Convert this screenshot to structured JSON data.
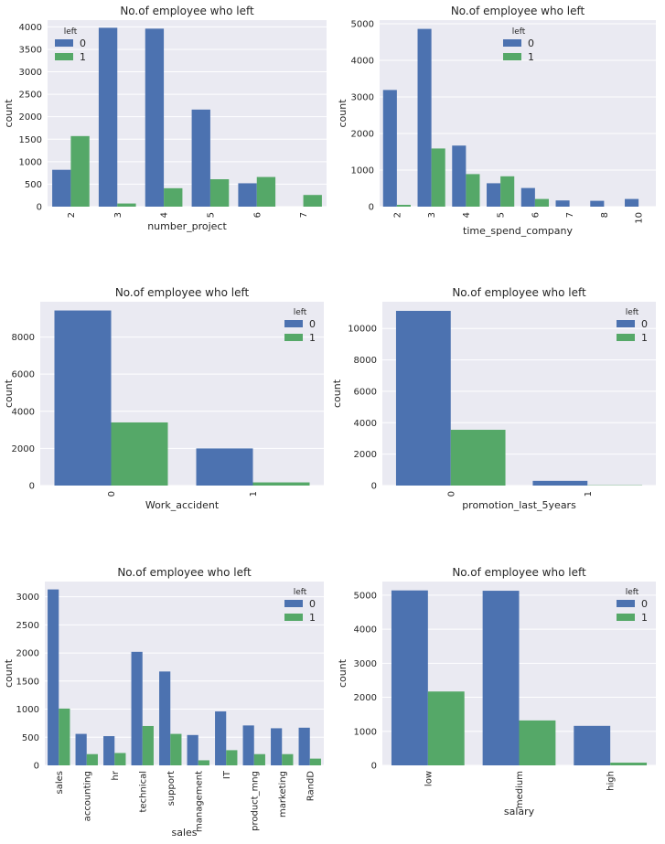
{
  "colors": {
    "left_0": "#4c72b0",
    "left_1": "#55a868",
    "plot_bg": "#eaeaf2",
    "grid": "#ffffff"
  },
  "chart_data": [
    {
      "type": "bar",
      "title": "No.of employee who left",
      "xlabel": "number_project",
      "ylabel": "count",
      "categories": [
        "2",
        "3",
        "4",
        "5",
        "6",
        "7"
      ],
      "series": [
        {
          "name": "0",
          "values": [
            820,
            3980,
            3960,
            2160,
            520,
            0
          ]
        },
        {
          "name": "1",
          "values": [
            1570,
            70,
            410,
            610,
            660,
            260
          ]
        }
      ],
      "ylim": [
        0,
        4150
      ],
      "yticks": [
        0,
        500,
        1000,
        1500,
        2000,
        2500,
        3000,
        3500,
        4000
      ],
      "legend_title": "left",
      "legend_position": "upper-left",
      "grid": true
    },
    {
      "type": "bar",
      "title": "No.of employee who left",
      "xlabel": "time_spend_company",
      "ylabel": "count",
      "categories": [
        "2",
        "3",
        "4",
        "5",
        "6",
        "7",
        "8",
        "10"
      ],
      "series": [
        {
          "name": "0",
          "values": [
            3190,
            4860,
            1670,
            640,
            510,
            170,
            160,
            210
          ]
        },
        {
          "name": "1",
          "values": [
            50,
            1590,
            890,
            830,
            210,
            0,
            0,
            0
          ]
        }
      ],
      "ylim": [
        0,
        5100
      ],
      "yticks": [
        0,
        1000,
        2000,
        3000,
        4000,
        5000
      ],
      "legend_title": "left",
      "legend_position": "upper-center",
      "grid": true
    },
    {
      "type": "bar",
      "title": "No.of employee who left",
      "xlabel": "Work_accident",
      "ylabel": "count",
      "categories": [
        "0",
        "1"
      ],
      "series": [
        {
          "name": "0",
          "values": [
            9430,
            2000
          ]
        },
        {
          "name": "1",
          "values": [
            3400,
            170
          ]
        }
      ],
      "ylim": [
        0,
        9900
      ],
      "yticks": [
        0,
        2000,
        4000,
        6000,
        8000
      ],
      "legend_title": "left",
      "legend_position": "upper-right",
      "grid": true
    },
    {
      "type": "bar",
      "title": "No.of employee who left",
      "xlabel": "promotion_last_5years",
      "ylabel": "count",
      "categories": [
        "0",
        "1"
      ],
      "series": [
        {
          "name": "0",
          "values": [
            11120,
            300
          ]
        },
        {
          "name": "1",
          "values": [
            3550,
            20
          ]
        }
      ],
      "ylim": [
        0,
        11700
      ],
      "yticks": [
        0,
        2000,
        4000,
        6000,
        8000,
        10000
      ],
      "legend_title": "left",
      "legend_position": "upper-right",
      "grid": true
    },
    {
      "type": "bar",
      "title": "No.of employee who left",
      "xlabel": "sales",
      "ylabel": "count",
      "categories": [
        "sales",
        "accounting",
        "hr",
        "technical",
        "support",
        "management",
        "IT",
        "product_mng",
        "marketing",
        "RandD"
      ],
      "series": [
        {
          "name": "0",
          "values": [
            3130,
            560,
            520,
            2020,
            1670,
            540,
            960,
            710,
            660,
            670
          ]
        },
        {
          "name": "1",
          "values": [
            1010,
            200,
            220,
            700,
            560,
            90,
            270,
            200,
            200,
            120
          ]
        }
      ],
      "ylim": [
        0,
        3270
      ],
      "yticks": [
        0,
        500,
        1000,
        1500,
        2000,
        2500,
        3000
      ],
      "legend_title": "left",
      "legend_position": "upper-right",
      "grid": true
    },
    {
      "type": "bar",
      "title": "No.of employee who left",
      "xlabel": "salary",
      "ylabel": "count",
      "categories": [
        "low",
        "medium",
        "high"
      ],
      "series": [
        {
          "name": "0",
          "values": [
            5140,
            5130,
            1160
          ]
        },
        {
          "name": "1",
          "values": [
            2170,
            1320,
            80
          ]
        }
      ],
      "ylim": [
        0,
        5400
      ],
      "yticks": [
        0,
        1000,
        2000,
        3000,
        4000,
        5000
      ],
      "legend_title": "left",
      "legend_position": "upper-right",
      "grid": true
    }
  ]
}
